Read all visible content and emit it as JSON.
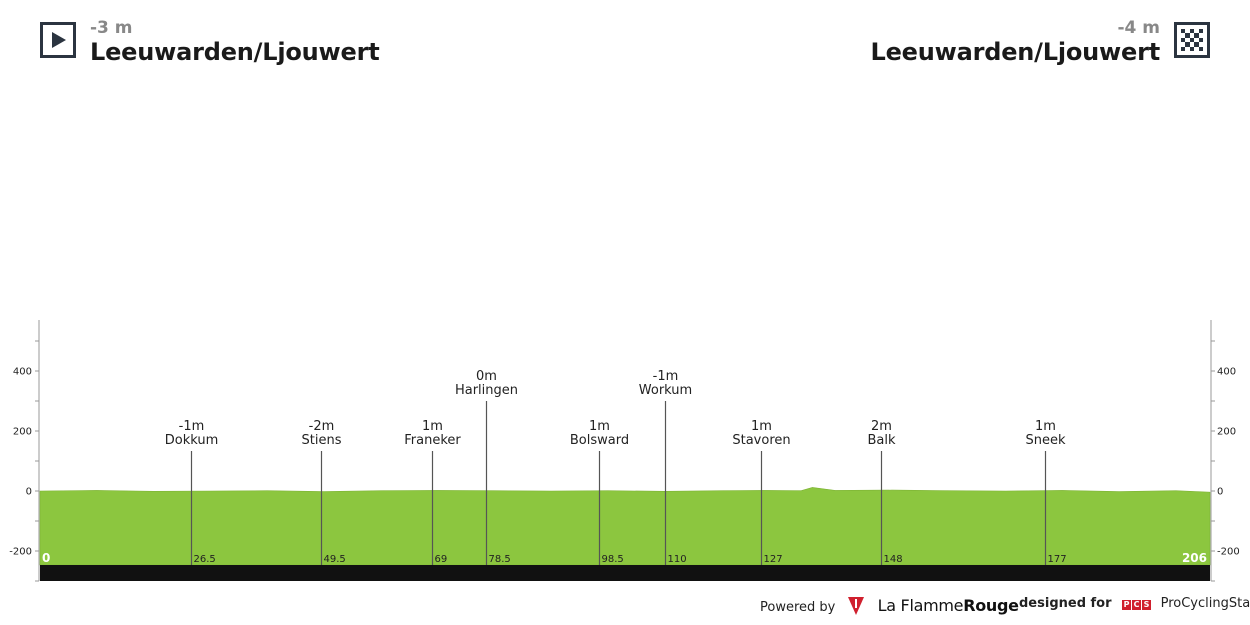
{
  "start": {
    "altitude": "-3 m",
    "city": "Leeuwarden/Ljouwert",
    "icon": "play-flag-icon"
  },
  "finish": {
    "altitude": "-4 m",
    "city": "Leeuwarden/Ljouwert",
    "icon": "checkered-flag-icon"
  },
  "colors": {
    "profile_fill": "#8cc63f",
    "road_bar": "#111111",
    "marker_line": "#555555",
    "icon_border": "#2b3440"
  },
  "chart_data": {
    "type": "area",
    "xlim": [
      0,
      206
    ],
    "ylim": [
      -250,
      550
    ],
    "y_ticks": [
      -200,
      0,
      200,
      400
    ],
    "y_tick_labels": [
      "-200",
      "0",
      "200",
      "400"
    ],
    "x_start_label": "0",
    "x_end_label": "206",
    "grid": false,
    "profile": {
      "x": [
        0,
        10,
        20,
        30,
        40,
        50,
        60,
        70,
        80,
        90,
        100,
        110,
        120,
        128,
        134,
        136,
        140,
        150,
        160,
        170,
        180,
        190,
        200,
        206
      ],
      "y": [
        0,
        2,
        -1,
        0,
        1,
        -2,
        1,
        2,
        1,
        0,
        1,
        -1,
        1,
        2,
        1,
        12,
        2,
        3,
        1,
        0,
        2,
        -2,
        1,
        -4
      ]
    },
    "checkpoints": [
      {
        "km_label": "26.5",
        "km": 26.5,
        "altitude": "-1m",
        "name": "Dokkum",
        "level": 1
      },
      {
        "km_label": "49.5",
        "km": 49.5,
        "altitude": "-2m",
        "name": "Stiens",
        "level": 1
      },
      {
        "km_label": "69",
        "km": 69,
        "altitude": "1m",
        "name": "Franeker",
        "level": 1
      },
      {
        "km_label": "78.5",
        "km": 78.5,
        "altitude": "0m",
        "name": "Harlingen",
        "level": 2
      },
      {
        "km_label": "98.5",
        "km": 98.5,
        "altitude": "1m",
        "name": "Bolsward",
        "level": 1
      },
      {
        "km_label": "110",
        "km": 110,
        "altitude": "-1m",
        "name": "Workum",
        "level": 2
      },
      {
        "km_label": "127",
        "km": 127,
        "altitude": "1m",
        "name": "Stavoren",
        "level": 1
      },
      {
        "km_label": "148",
        "km": 148,
        "altitude": "2m",
        "name": "Balk",
        "level": 1
      },
      {
        "km_label": "177",
        "km": 177,
        "altitude": "1m",
        "name": "Sneek",
        "level": 1
      }
    ]
  },
  "footer": {
    "powered_by": "Powered by",
    "brand_light": "La Flamme",
    "brand_bold": "Rouge",
    "designed_for": "designed for",
    "pcs_letters": [
      "P",
      "C",
      "S"
    ],
    "pcs_name": "ProCyclingStats"
  }
}
